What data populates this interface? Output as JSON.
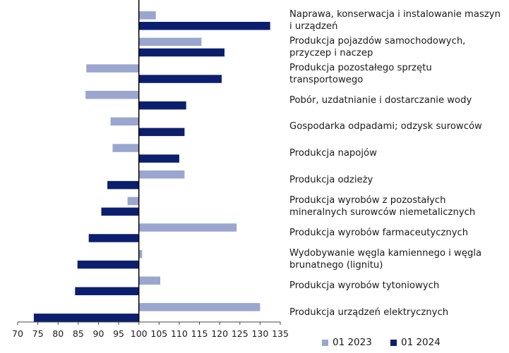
{
  "chart_data": {
    "type": "bar",
    "orientation": "horizontal",
    "baseline": 100,
    "categories": [
      "Naprawa, konserwacja i instalowanie maszyn i urządzeń",
      "Produkcja pojazdów samochodowych, przyczep i naczep",
      "Produkcja pozostałego sprzętu transportowego",
      "Pobór, uzdatnianie i dostarczanie wody",
      "Gospodarka odpadami; odzysk surowców",
      "Produkcja napojów",
      "Produkcja odzieży",
      "Produkcja wyrobów z pozostałych mineralnych surowców niemetalicznych",
      "Produkcja wyrobów farmaceutycznych",
      "Wydobywanie węgla kamiennego i węgla brunatnego (lignitu)",
      "Produkcja wyrobów tytoniowych",
      "Produkcja urządzeń elektrycznych"
    ],
    "series": [
      {
        "name": "01 2023",
        "color": "#9ba6cf",
        "values": [
          104.2,
          115.5,
          87.0,
          86.8,
          93.0,
          93.5,
          111.3,
          97.2,
          124.2,
          100.8,
          105.3,
          130.0
        ]
      },
      {
        "name": "01 2024",
        "color": "#0c1f6e",
        "values": [
          132.5,
          121.2,
          120.5,
          111.7,
          111.3,
          110.0,
          92.2,
          90.7,
          87.6,
          84.8,
          84.2,
          74.0
        ]
      }
    ],
    "x_ticks": [
      70,
      75,
      80,
      85,
      90,
      95,
      100,
      105,
      110,
      115,
      120,
      125,
      130,
      135
    ],
    "xlim": [
      70,
      135
    ],
    "legend_position": "bottom-right",
    "grid": false
  }
}
